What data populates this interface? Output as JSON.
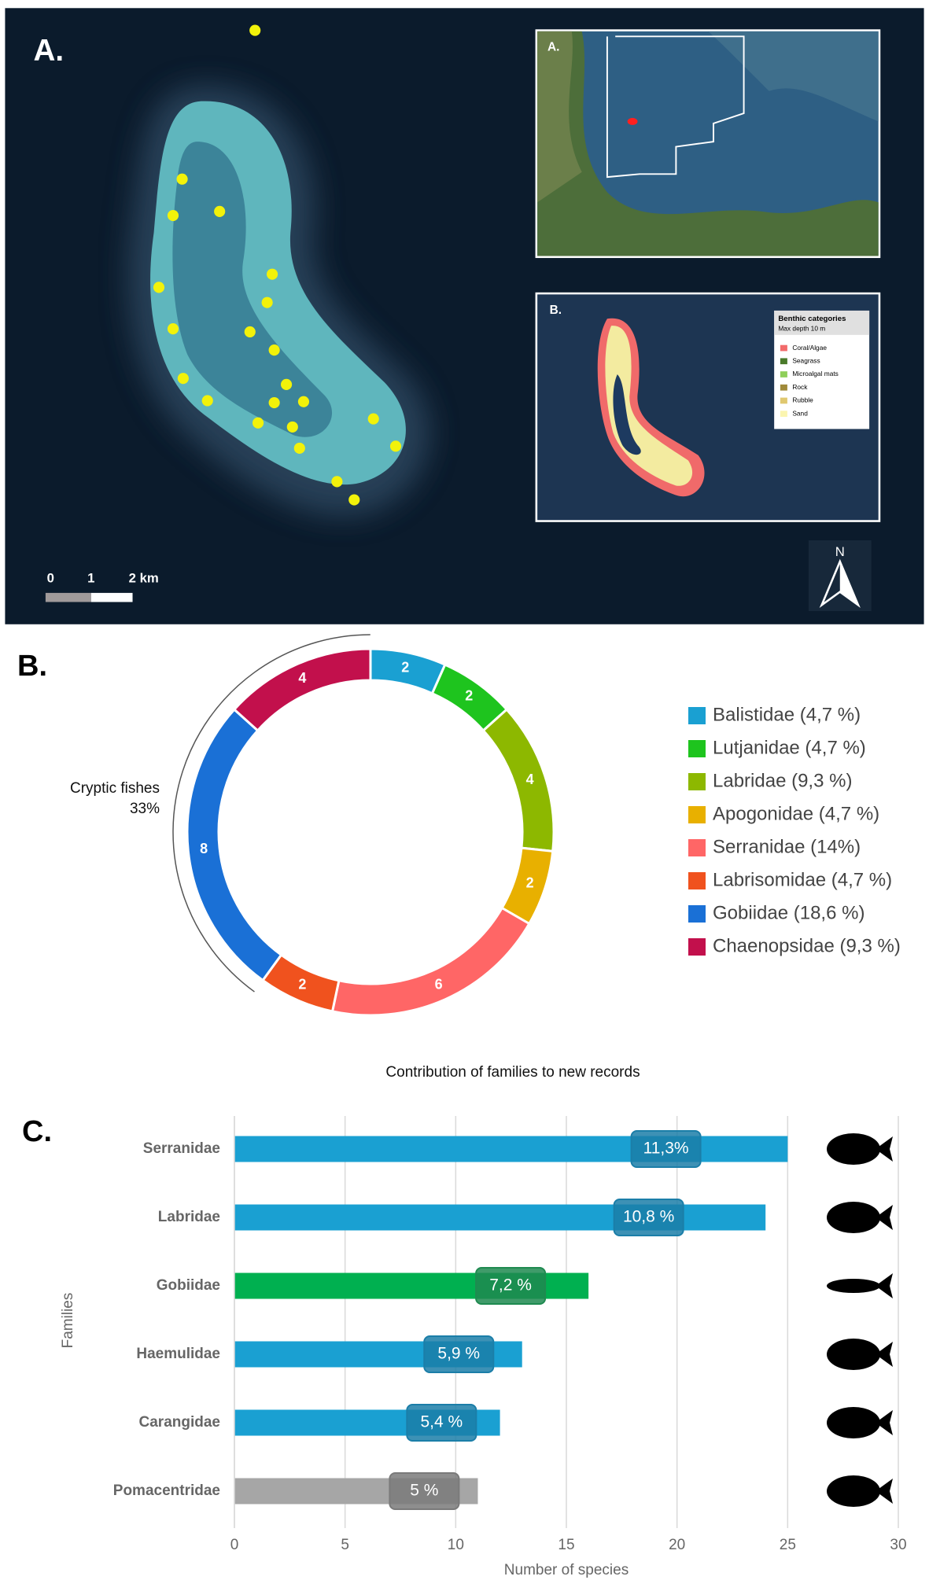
{
  "map": {
    "panel_label": "A.",
    "scale_labels": [
      "0",
      "1",
      "2 km"
    ],
    "north_label": "N",
    "inset_a_label": "A.",
    "inset_b_label": "B.",
    "legend_title": "Benthic categories",
    "legend_subtitle": "Max depth 10 m",
    "legend_items": [
      {
        "name": "Coral/Algae",
        "color": "#f26b6b"
      },
      {
        "name": "Seagrass",
        "color": "#4a7a2a"
      },
      {
        "name": "Microalgal mats",
        "color": "#8fcf5a"
      },
      {
        "name": "Rock",
        "color": "#a08a3a"
      },
      {
        "name": "Rubble",
        "color": "#e0c870"
      },
      {
        "name": "Sand",
        "color": "#fbf5b0"
      }
    ]
  },
  "chart_data": [
    {
      "type": "donut",
      "panel_label": "B.",
      "title": "Contribution of families to new records",
      "categories": [
        "Balistidae (4,7 %)",
        "Lutjanidae (4,7 %)",
        "Labridae (9,3 %)",
        "Apogonidae (4,7 %)",
        "Serranidae (14%)",
        "Labrisomidae (4,7 %)",
        "Gobiidae (18,6 %)",
        "Chaenopsidae (9,3 %)"
      ],
      "values": [
        2,
        2,
        4,
        2,
        6,
        2,
        8,
        4
      ],
      "colors": [
        "#1aa0d2",
        "#1ec41e",
        "#8db800",
        "#e8b000",
        "#ff6666",
        "#f0521e",
        "#1a70d6",
        "#c2104c"
      ],
      "annotation": [
        "Cryptic fishes",
        "33%"
      ]
    },
    {
      "type": "bar",
      "panel_label": "C.",
      "orientation": "horizontal",
      "categories": [
        "Serranidae",
        "Labridae",
        "Gobiidae",
        "Haemulidae",
        "Carangidae",
        "Pomacentridae"
      ],
      "values": [
        25,
        24,
        16,
        13,
        12,
        11
      ],
      "value_labels": [
        "11,3%",
        "10,8 %",
        "7,2 %",
        "5,9 %",
        "5,4 %",
        "5 %"
      ],
      "colors": [
        "#1aa0d2",
        "#1aa0d2",
        "#00b050",
        "#1aa0d2",
        "#1aa0d2",
        "#a6a6a6"
      ],
      "label_colors": [
        "#1b7ea8",
        "#1b7ea8",
        "#1f8a50",
        "#1b7ea8",
        "#1b7ea8",
        "#7a7a7a"
      ],
      "xlim": [
        0,
        30
      ],
      "xticks": [
        0,
        5,
        10,
        15,
        20,
        25,
        30
      ],
      "xlabel": "Number of species",
      "ylabel": "Families",
      "grid": true
    }
  ]
}
